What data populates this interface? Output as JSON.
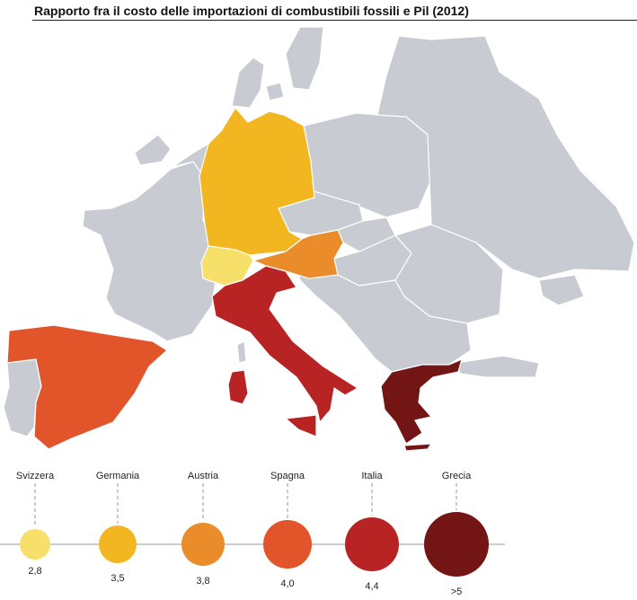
{
  "title": "Rapporto fra il costo delle importazioni di combustibili fossili e Pil (2012)",
  "colors": {
    "background_countries": "#c9cbd3",
    "borders": "#ffffff",
    "sea": "#ffffff"
  },
  "legend": [
    {
      "country": "Svizzera",
      "value": "2,8",
      "color": "#f6e06a"
    },
    {
      "country": "Germania",
      "value": "3,5",
      "color": "#f2b620"
    },
    {
      "country": "Austria",
      "value": "3,8",
      "color": "#ea8c2a"
    },
    {
      "country": "Spagna",
      "value": "4,0",
      "color": "#e2552b"
    },
    {
      "country": "Italia",
      "value": "4,4",
      "color": "#b82424"
    },
    {
      "country": "Grecia",
      "value": ">5",
      "color": "#731515"
    }
  ]
}
